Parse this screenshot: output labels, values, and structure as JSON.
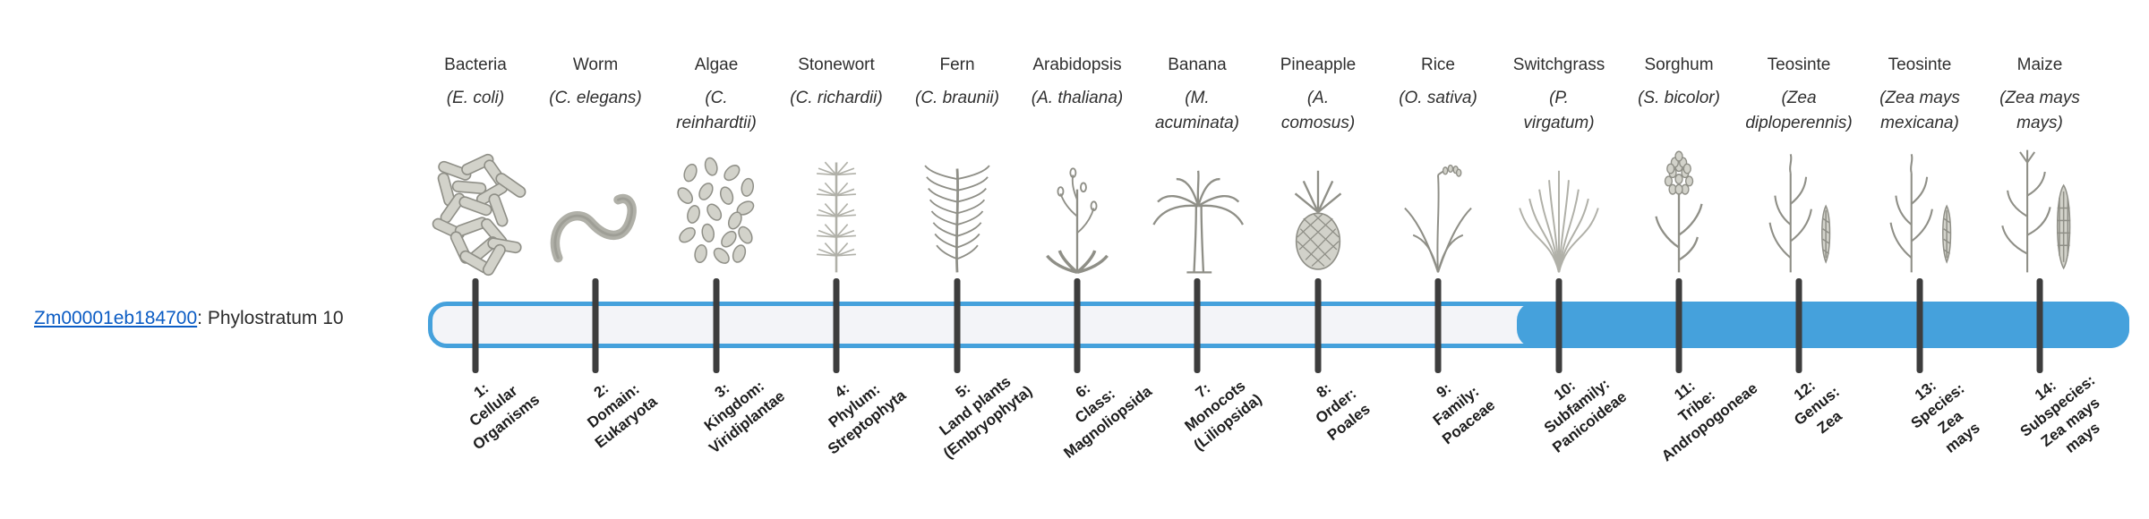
{
  "gene_label": {
    "gene_id": "Zm00001eb184700",
    "suffix": ": Phylostratum 10"
  },
  "colors": {
    "accent_blue": "#45a1dc",
    "track_fill": "#f3f4f8",
    "tick": "#3d3d3d",
    "link_blue": "#0b5cc4",
    "text": "#2f2f2f",
    "illustration_gray": "#8f8f87"
  },
  "chart_data": {
    "type": "bar",
    "title": "Zm00001eb184700: Phylostratum 10",
    "description": "Phylostratigraphy timeline bar across 14 phylostrata; bar is unfilled (track) for strata 1-9 and filled blue from stratum 10 (Subfamily: Panicoideae) through stratum 14 (Subspecies: Zea mays mays).",
    "gene_id": "Zm00001eb184700",
    "gene_phylostratum": 10,
    "num_strata": 14,
    "filled_range": [
      10,
      14
    ],
    "fill_start_fraction": 0.641,
    "strata": [
      {
        "num": "1:",
        "rank": "Cellular\nOrganisms",
        "organism": "Bacteria",
        "scientific": "(E. coli)",
        "icon": "bacteria-illustration",
        "shape": "bacteria"
      },
      {
        "num": "2:",
        "rank": "Domain:\nEukaryota",
        "organism": "Worm",
        "scientific": "(C. elegans)",
        "icon": "worm-illustration",
        "shape": "worm"
      },
      {
        "num": "3:",
        "rank": "Kingdom:\nViridiplantae",
        "organism": "Algae",
        "scientific": "(C.\nreinhardtii)",
        "icon": "algae-illustration",
        "shape": "algae"
      },
      {
        "num": "4:",
        "rank": "Phylum:\nStreptophyta",
        "organism": "Stonewort",
        "scientific": "(C. richardii)",
        "icon": "stonewort-illustration",
        "shape": "stonewort"
      },
      {
        "num": "5:",
        "rank": "Land plants\n(Embryophyta)",
        "organism": "Fern",
        "scientific": "(C. braunii)",
        "icon": "fern-illustration",
        "shape": "fern"
      },
      {
        "num": "6:",
        "rank": "Class:\nMagnoliopsida",
        "organism": "Arabidopsis",
        "scientific": "(A. thaliana)",
        "icon": "arabidopsis-illustration",
        "shape": "rosette"
      },
      {
        "num": "7:",
        "rank": "Monocots\n(Liliopsida)",
        "organism": "Banana",
        "scientific": "(M.\nacuminata)",
        "icon": "banana-illustration",
        "shape": "palm"
      },
      {
        "num": "8:",
        "rank": "Order:\nPoales",
        "organism": "Pineapple",
        "scientific": "(A.\ncomosus)",
        "icon": "pineapple-illustration",
        "shape": "pineapple"
      },
      {
        "num": "9:",
        "rank": "Family:\nPoaceae",
        "organism": "Rice",
        "scientific": "(O. sativa)",
        "icon": "rice-illustration",
        "shape": "rice"
      },
      {
        "num": "10:",
        "rank": "Subfamily:\nPanicoideae",
        "organism": "Switchgrass",
        "scientific": "(P.\nvirgatum)",
        "icon": "switchgrass-illustration",
        "shape": "switchgrass"
      },
      {
        "num": "11:",
        "rank": "Tribe:\nAndropogoneae",
        "organism": "Sorghum",
        "scientific": "(S. bicolor)",
        "icon": "sorghum-illustration",
        "shape": "sorghum"
      },
      {
        "num": "12:",
        "rank": "Genus:\nZea",
        "organism": "Teosinte",
        "scientific": "(Zea\ndiploperennis)",
        "icon": "teosinte-illustration",
        "shape": "teosinte"
      },
      {
        "num": "13:",
        "rank": "Species:\nZea\nmays",
        "organism": "Teosinte",
        "scientific": "(Zea mays\nmexicana)",
        "icon": "teosinte-illustration",
        "shape": "teosinte"
      },
      {
        "num": "14:",
        "rank": "Subspecies:\nZea mays\nmays",
        "organism": "Maize",
        "scientific": "(Zea mays\nmays)",
        "icon": "maize-illustration",
        "shape": "maize"
      }
    ]
  }
}
